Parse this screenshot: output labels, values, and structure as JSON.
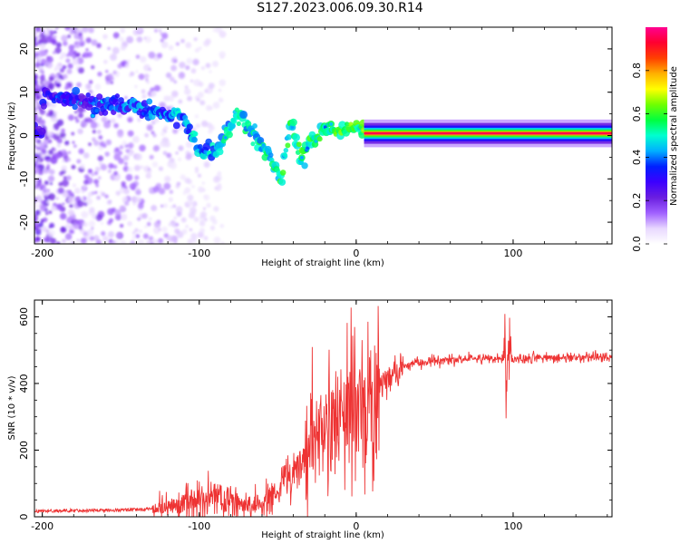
{
  "title": "S127.2023.006.09.30.R14",
  "chart_data": [
    {
      "type": "heatmap",
      "xlabel": "Height of straight line (km)",
      "ylabel": "Frequency (Hz)",
      "xlim": [
        -205,
        163
      ],
      "ylim": [
        -25,
        25
      ],
      "x_ticks": [
        "-200",
        "-100",
        "0",
        "100"
      ],
      "y_ticks": [
        "-20",
        "-10",
        "0",
        "10",
        "20"
      ],
      "colorbar": {
        "label": "Normalized spectral amplitude",
        "range": [
          0,
          1
        ],
        "ticks": [
          "0.0",
          "0.2",
          "0.4",
          "0.6",
          "0.8"
        ],
        "colormap": [
          "#ffffff",
          "#e8d8ff",
          "#a060ff",
          "#6a1ee0",
          "#3c00ff",
          "#0020ff",
          "#00b0ff",
          "#00ffd0",
          "#00ff40",
          "#70ff00",
          "#ffff00",
          "#ffb000",
          "#ff4000",
          "#ff0030",
          "#ff0090"
        ]
      },
      "ridge": {
        "description_points": [
          {
            "x": -200,
            "y": 9
          },
          {
            "x": -150,
            "y": 7
          },
          {
            "x": -120,
            "y": 5
          },
          {
            "x": -110,
            "y": 4
          },
          {
            "x": -100,
            "y": -3
          },
          {
            "x": -90,
            "y": -4
          },
          {
            "x": -75,
            "y": 5
          },
          {
            "x": -65,
            "y": 0
          },
          {
            "x": -55,
            "y": -5
          },
          {
            "x": -48,
            "y": -11
          },
          {
            "x": -42,
            "y": 4
          },
          {
            "x": -35,
            "y": -5
          },
          {
            "x": -28,
            "y": -1
          },
          {
            "x": -20,
            "y": 2
          },
          {
            "x": -10,
            "y": 1
          },
          {
            "x": 0,
            "y": 2
          },
          {
            "x": 10,
            "y": 0.5
          },
          {
            "x": 30,
            "y": 0.5
          },
          {
            "x": 163,
            "y": 0.5
          }
        ],
        "steady_freq_hz": 0.5,
        "steady_from_km": 5
      }
    },
    {
      "type": "line",
      "xlabel": "Height of straight line (km)",
      "ylabel": "SNR (10 * v/v)",
      "xlim": [
        -205,
        163
      ],
      "ylim": [
        0,
        650
      ],
      "x_ticks": [
        "-200",
        "-100",
        "0",
        "100"
      ],
      "y_ticks": [
        "0",
        "200",
        "400",
        "600"
      ],
      "color": "#ee3333",
      "series": [
        {
          "x": [
            -205,
            -180,
            -150,
            -130,
            -120,
            -110,
            -100,
            -90,
            -80,
            -70,
            -60,
            -50,
            -40,
            -30,
            -20,
            -10,
            0,
            10,
            20,
            30,
            40,
            50,
            60,
            70,
            80,
            90,
            96,
            100,
            110,
            130,
            163
          ],
          "values": [
            12,
            14,
            15,
            18,
            30,
            40,
            50,
            55,
            48,
            35,
            40,
            80,
            140,
            210,
            260,
            300,
            330,
            360,
            410,
            450,
            462,
            468,
            470,
            472,
            475,
            476,
            480,
            470,
            475,
            478,
            480
          ]
        }
      ]
    }
  ]
}
